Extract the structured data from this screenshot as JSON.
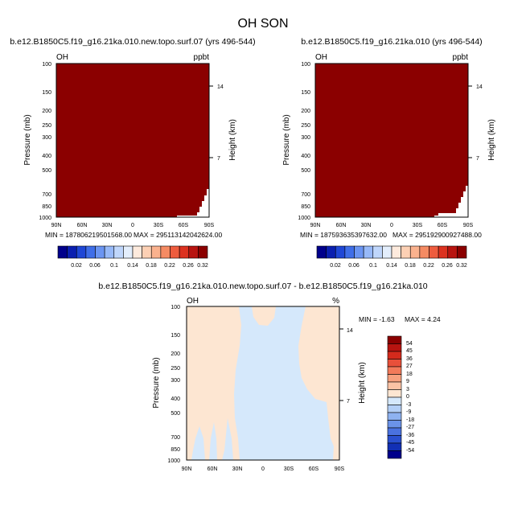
{
  "figure": {
    "title": "OH SON"
  },
  "colors": {
    "dark_red": "#8b0000",
    "diff_pos": "#fde6d2",
    "diff_neg": "#d5e8fb"
  },
  "chart_data": [
    {
      "type": "heatmap",
      "title": "b.e12.B1850C5.f19_g16.21ka.010.new.topo.surf.07 (yrs 496-544)",
      "variable": "OH",
      "units": "ppbt",
      "ylabel": "Pressure (mb)",
      "ylabel_right": "Height (km)",
      "x_ticks": [
        "90N",
        "60N",
        "30N",
        "0",
        "30S",
        "60S",
        "90S"
      ],
      "y_ticks": [
        "100",
        "150",
        "200",
        "250",
        "300",
        "400",
        "500",
        "700",
        "850",
        "1000"
      ],
      "y_ticks_right": [
        "14",
        "7"
      ],
      "field_value": "> 0.32",
      "min_label": "MIN = 187806219501568.00",
      "max_label": "MAX = 295113142042624.00",
      "colorbar_labels": [
        "0.02",
        "0.06",
        "0.1",
        "0.14",
        "0.18",
        "0.22",
        "0.26",
        "0.32"
      ],
      "colorbar_colors": [
        "#00008b",
        "#0a1fb0",
        "#1f47d6",
        "#3f6ee8",
        "#6b95f2",
        "#97b9f8",
        "#bfd6fb",
        "#e3eefc",
        "#fdeadd",
        "#fcd0b4",
        "#fab28e",
        "#f58b63",
        "#ee5c3e",
        "#dc3220",
        "#b81410",
        "#8b0000"
      ]
    },
    {
      "type": "heatmap",
      "title": "b.e12.B1850C5.f19_g16.21ka.010 (yrs 496-544)",
      "variable": "OH",
      "units": "ppbt",
      "ylabel": "Pressure (mb)",
      "ylabel_right": "Height (km)",
      "x_ticks": [
        "90N",
        "60N",
        "30N",
        "0",
        "30S",
        "60S",
        "90S"
      ],
      "y_ticks": [
        "100",
        "150",
        "200",
        "250",
        "300",
        "400",
        "500",
        "700",
        "850",
        "1000"
      ],
      "y_ticks_right": [
        "14",
        "7"
      ],
      "field_value": "> 0.32",
      "min_label": "MIN = 187593635397632.00",
      "max_label": "MAX = 295192900927488.00",
      "colorbar_labels": [
        "0.02",
        "0.06",
        "0.1",
        "0.14",
        "0.18",
        "0.22",
        "0.26",
        "0.32"
      ],
      "colorbar_colors": [
        "#00008b",
        "#0a1fb0",
        "#1f47d6",
        "#3f6ee8",
        "#6b95f2",
        "#97b9f8",
        "#bfd6fb",
        "#e3eefc",
        "#fdeadd",
        "#fcd0b4",
        "#fab28e",
        "#f58b63",
        "#ee5c3e",
        "#dc3220",
        "#b81410",
        "#8b0000"
      ]
    },
    {
      "type": "heatmap",
      "title": "b.e12.B1850C5.f19_g16.21ka.010.new.topo.surf.07 - b.e12.B1850C5.f19_g16.21ka.010",
      "variable": "OH",
      "units": "%",
      "ylabel": "Pressure (mb)",
      "ylabel_right": "Height (km)",
      "x_ticks": [
        "90N",
        "60N",
        "30N",
        "0",
        "30S",
        "60S",
        "90S"
      ],
      "y_ticks": [
        "100",
        "150",
        "200",
        "250",
        "300",
        "400",
        "500",
        "700",
        "850",
        "1000"
      ],
      "y_ticks_right": [
        "14",
        "7"
      ],
      "min_label": "MIN =  -1.63",
      "max_label": "MAX =  4.24",
      "colorbar_labels": [
        "54",
        "45",
        "36",
        "27",
        "18",
        "9",
        "3",
        "0",
        "-3",
        "-9",
        "-18",
        "-27",
        "-36",
        "-45",
        "-54"
      ],
      "colorbar_colors": [
        "#8b0000",
        "#b81410",
        "#d42a1c",
        "#e8503a",
        "#f27a5a",
        "#f7a07e",
        "#fbc3a5",
        "#fde6d2",
        "#d5e8fb",
        "#b3cff6",
        "#8eb2f0",
        "#6b93e8",
        "#4a72df",
        "#2a50cf",
        "#1230b5",
        "#00008b"
      ]
    }
  ]
}
